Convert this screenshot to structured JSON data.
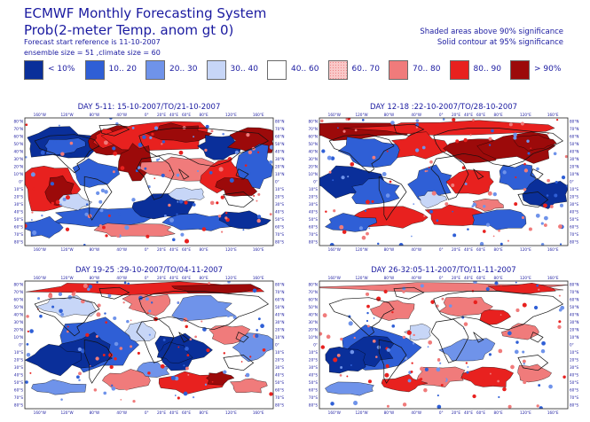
{
  "header": {
    "title": "ECMWF Monthly Forecasting System",
    "subtitle": "Prob(2-meter Temp. anom gt 0)",
    "start_reference": "Forecast start reference is 11-10-2007",
    "ensemble_info": "ensemble size = 51 ,climate size = 60",
    "note_shaded": "Shaded areas above 90% significance",
    "note_contour": "Solid contour at 95% significance"
  },
  "legend": [
    {
      "label": "< 10%",
      "color": "#0a2f9a"
    },
    {
      "label": "10.. 20",
      "color": "#2f5fd6"
    },
    {
      "label": "20.. 30",
      "color": "#6f93ea"
    },
    {
      "label": "30.. 40",
      "color": "#c7d6f7"
    },
    {
      "label": "40.. 60",
      "color": "#ffffff"
    },
    {
      "label": "60.. 70",
      "color": "#f9c8c8"
    },
    {
      "label": "70.. 80",
      "color": "#f07b7b"
    },
    {
      "label": "80.. 90",
      "color": "#e8211f"
    },
    {
      "label": "> 90%",
      "color": "#9c0a0a"
    }
  ],
  "maps": [
    {
      "title": "DAY 5-11: 15-10-2007/TO/21-10-2007",
      "pattern": "p1"
    },
    {
      "title": "DAY 12-18 :22-10-2007/TO/28-10-2007",
      "pattern": "p2"
    },
    {
      "title": "DAY 19-25 :29-10-2007/TO/04-11-2007",
      "pattern": "p3"
    },
    {
      "title": "DAY 26-32:05-11-2007/TO/11-11-2007",
      "pattern": "p4"
    }
  ],
  "axes": {
    "lon_labels": [
      "160°W",
      "120°W",
      "80°W",
      "40°W",
      "0°",
      "20°E",
      "40°E",
      "60°E",
      "80°E",
      "120°E",
      "160°E"
    ],
    "lat_labels": [
      "80°N",
      "70°N",
      "60°N",
      "50°N",
      "40°N",
      "30°N",
      "20°N",
      "10°N",
      "0°",
      "10°S",
      "20°S",
      "30°S",
      "40°S",
      "50°S",
      "60°S",
      "70°S",
      "80°S"
    ]
  }
}
